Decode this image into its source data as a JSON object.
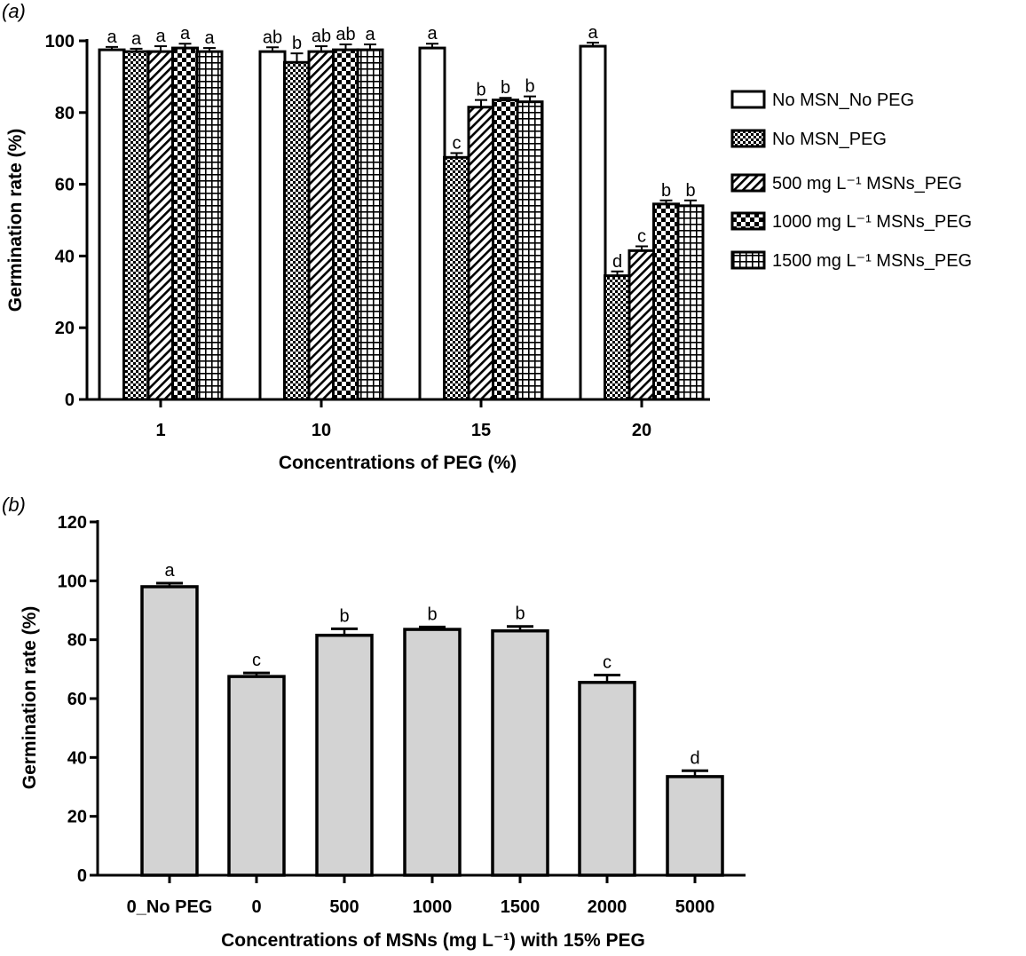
{
  "chart_data": [
    {
      "panel_label": "(a)",
      "type": "bar",
      "xlabel": "Concentrations of PEG (%)",
      "ylabel": "Germination rate (%)",
      "ylim": [
        0,
        100
      ],
      "yticks": [
        "0",
        "20",
        "40",
        "60",
        "80",
        "100"
      ],
      "categories": [
        "1",
        "10",
        "15",
        "20"
      ],
      "legend_position": "right",
      "series": [
        {
          "name": "No MSN_No PEG",
          "pattern": "white",
          "values": [
            97.5,
            97.0,
            98.0,
            98.5
          ],
          "errors": [
            0.8,
            1.2,
            1.2,
            1.0
          ],
          "labels": [
            "a",
            "ab",
            "a",
            "a"
          ]
        },
        {
          "name": "No MSN_PEG",
          "pattern": "crosshatch",
          "values": [
            97.0,
            94.0,
            67.5,
            34.5
          ],
          "errors": [
            0.8,
            2.5,
            1.2,
            1.2
          ],
          "labels": [
            "a",
            "b",
            "c",
            "d"
          ]
        },
        {
          "name": "500 mg L⁻¹ MSNs_PEG",
          "pattern": "diagonal",
          "values": [
            97.0,
            97.0,
            81.5,
            41.5
          ],
          "errors": [
            1.5,
            1.5,
            2.0,
            1.2
          ],
          "labels": [
            "a",
            "ab",
            "b",
            "c"
          ]
        },
        {
          "name": "1000 mg L⁻¹ MSNs_PEG",
          "pattern": "checker",
          "values": [
            98.0,
            97.5,
            83.5,
            54.5
          ],
          "errors": [
            1.2,
            1.5,
            0.6,
            1.0
          ],
          "labels": [
            "a",
            "ab",
            "b",
            "b"
          ]
        },
        {
          "name": "1500 mg L⁻¹ MSNs_PEG",
          "pattern": "grid",
          "values": [
            97.0,
            97.5,
            83.0,
            54.0
          ],
          "errors": [
            1.0,
            1.5,
            1.5,
            1.5
          ],
          "labels": [
            "a",
            "a",
            "b",
            "b"
          ]
        }
      ]
    },
    {
      "panel_label": "(b)",
      "type": "bar",
      "xlabel": "Concentrations of MSNs (mg L⁻¹) with 15% PEG",
      "ylabel": "Germination rate (%)",
      "ylim": [
        0,
        120
      ],
      "yticks": [
        "0",
        "20",
        "40",
        "60",
        "80",
        "100",
        "120"
      ],
      "categories": [
        "0_No PEG",
        "0",
        "500",
        "1000",
        "1500",
        "2000",
        "5000"
      ],
      "bar_color": "#d3d3d3",
      "values": [
        98.0,
        67.5,
        81.5,
        83.5,
        83.0,
        65.5,
        33.5
      ],
      "errors": [
        1.2,
        1.2,
        2.2,
        0.8,
        1.5,
        2.5,
        2.0
      ],
      "labels": [
        "a",
        "c",
        "b",
        "b",
        "b",
        "c",
        "d"
      ]
    }
  ]
}
